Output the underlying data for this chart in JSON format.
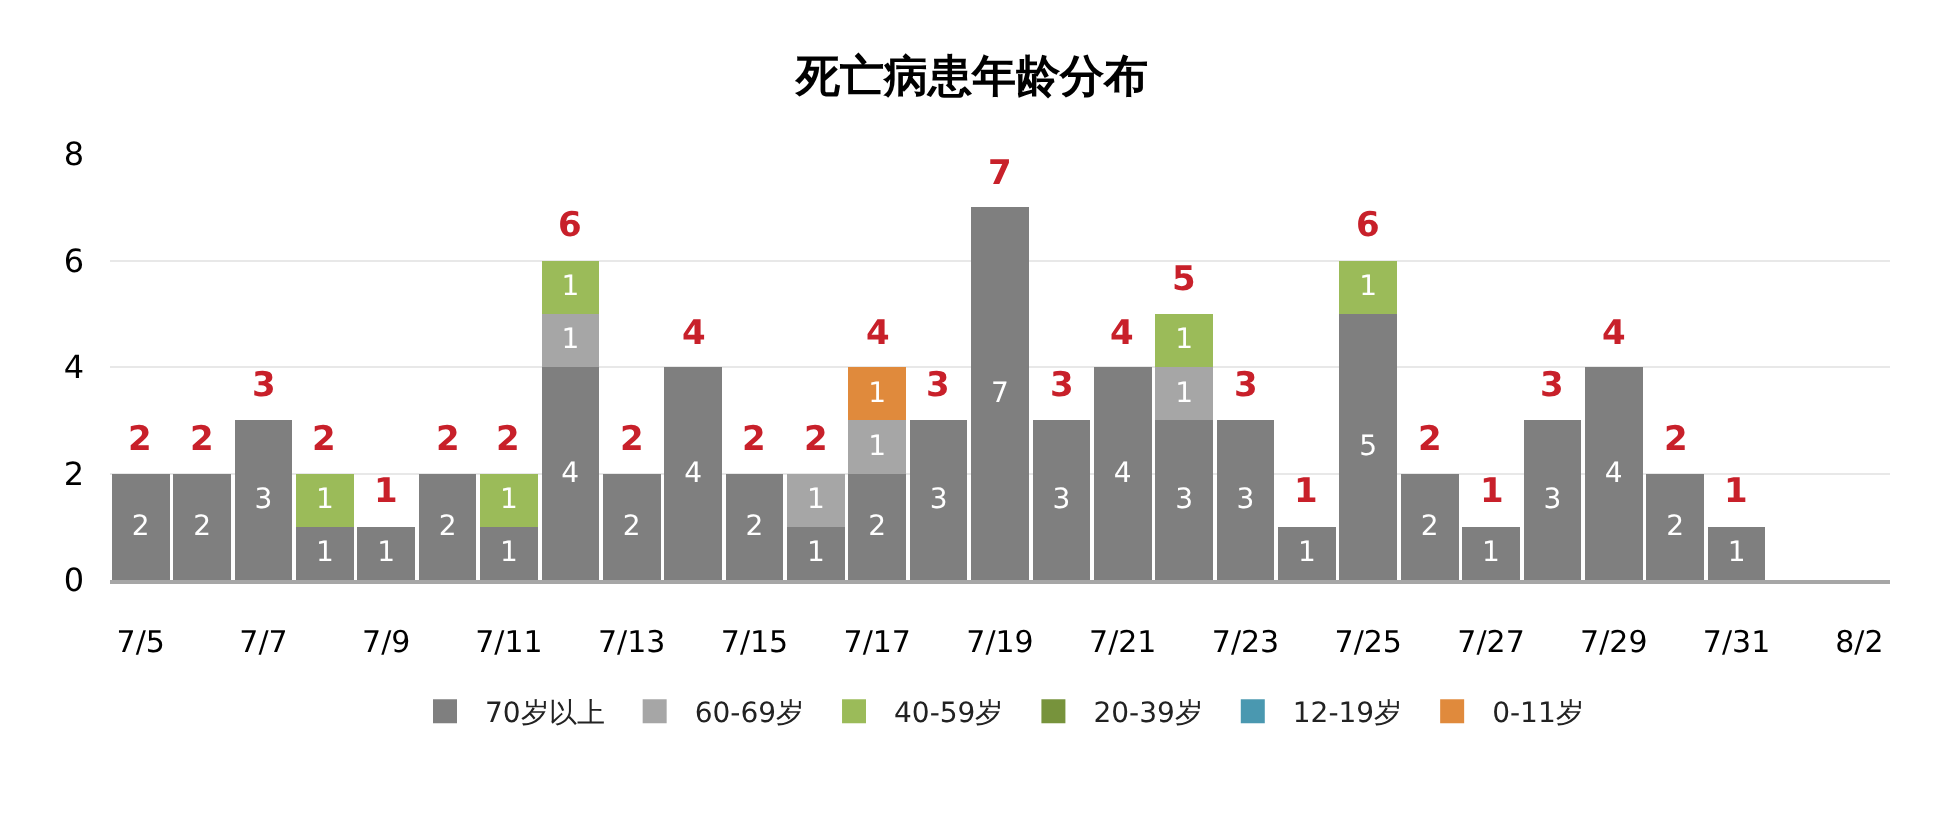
{
  "chart_data": {
    "type": "bar",
    "title": "死亡病患年龄分布",
    "categories": [
      "7/5",
      null,
      "7/7",
      null,
      "7/9",
      null,
      "7/11",
      null,
      "7/13",
      null,
      "7/15",
      null,
      "7/17",
      null,
      "7/19",
      null,
      "7/21",
      null,
      "7/23",
      null,
      "7/25",
      null,
      "7/27",
      null,
      "7/29",
      null,
      "7/31",
      null,
      "8/2"
    ],
    "stacked": true,
    "series": [
      {
        "name": "70岁以上",
        "color": "#7f7f7f",
        "values": [
          2,
          2,
          3,
          1,
          1,
          2,
          1,
          4,
          2,
          4,
          2,
          1,
          2,
          3,
          7,
          3,
          4,
          3,
          3,
          1,
          5,
          2,
          1,
          3,
          4,
          2,
          1,
          null,
          null
        ]
      },
      {
        "name": "60-69岁",
        "color": "#a6a6a6",
        "values": [
          null,
          null,
          null,
          null,
          null,
          null,
          null,
          1,
          null,
          null,
          null,
          1,
          1,
          null,
          null,
          null,
          null,
          1,
          null,
          null,
          null,
          null,
          null,
          null,
          null,
          null,
          null,
          null,
          null
        ]
      },
      {
        "name": "40-59岁",
        "color": "#9bbb59",
        "values": [
          null,
          null,
          null,
          1,
          null,
          null,
          1,
          1,
          null,
          null,
          null,
          null,
          null,
          null,
          null,
          null,
          null,
          1,
          null,
          null,
          1,
          null,
          null,
          null,
          null,
          null,
          null,
          null,
          null
        ]
      },
      {
        "name": "20-39岁",
        "color": "#77933c",
        "values": [
          null,
          null,
          null,
          null,
          null,
          null,
          null,
          null,
          null,
          null,
          null,
          null,
          null,
          null,
          null,
          null,
          null,
          null,
          null,
          null,
          null,
          null,
          null,
          null,
          null,
          null,
          null,
          null,
          null
        ]
      },
      {
        "name": "12-19岁",
        "color": "#4a98b0",
        "values": [
          null,
          null,
          null,
          null,
          null,
          null,
          null,
          null,
          null,
          null,
          null,
          null,
          null,
          null,
          null,
          null,
          null,
          null,
          null,
          null,
          null,
          null,
          null,
          null,
          null,
          null,
          null,
          null,
          null
        ]
      },
      {
        "name": "0-11岁",
        "color": "#e08a3c",
        "values": [
          null,
          null,
          null,
          null,
          null,
          null,
          null,
          null,
          null,
          null,
          null,
          null,
          1,
          null,
          null,
          null,
          null,
          null,
          null,
          null,
          null,
          null,
          null,
          null,
          null,
          null,
          null,
          null,
          null
        ]
      }
    ],
    "totals": [
      "2",
      "2",
      "3",
      "2",
      "1",
      "2",
      "2",
      "6",
      "2",
      "4",
      "2",
      "2",
      "4",
      "3",
      "7",
      "3",
      "4",
      "5",
      "3",
      "1",
      "6",
      "2",
      "1",
      "3",
      "4",
      "2",
      "1",
      null,
      null
    ],
    "data_labels": true,
    "ylim": [
      0,
      8
    ],
    "yticks": [
      0,
      2,
      4,
      6,
      8
    ],
    "grid": "y",
    "legend": "bottom"
  }
}
